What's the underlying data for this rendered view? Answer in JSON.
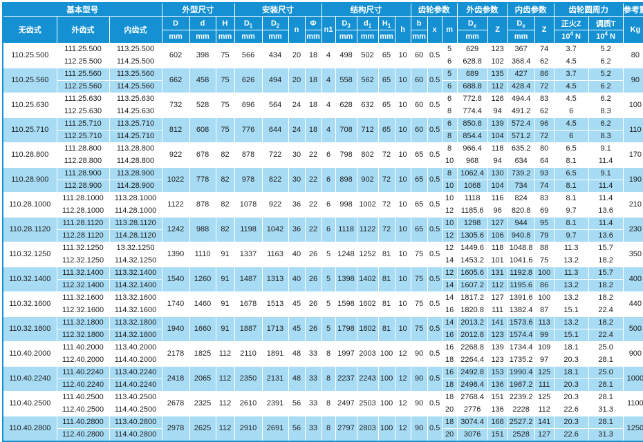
{
  "colors": {
    "header_bg": "#1591d3",
    "stripe_bg": "#a8dcf5",
    "row_bg": "#ffffff",
    "grid_line": "#ffffff",
    "text": "#1c1c1c",
    "header_text": "#ffffff"
  },
  "table": {
    "header": {
      "groups": [
        {
          "label": "基本型号",
          "span": 3
        },
        {
          "label": "外型尺寸",
          "span": 3
        },
        {
          "label": "安装尺寸",
          "span": 4
        },
        {
          "label": "结构尺寸",
          "span": 5
        },
        {
          "label": "齿轮参数",
          "span": 3
        },
        {
          "label": "外齿参数",
          "span": 2
        },
        {
          "label": "内齿参数",
          "span": 2
        },
        {
          "label": "齿轮圆周力",
          "span": 2
        },
        {
          "label": "参考重量",
          "span": 1
        }
      ],
      "cols": [
        {
          "key": "model-base",
          "base": "无齿式",
          "tall": true
        },
        {
          "key": "model-external",
          "base": "外齿式",
          "tall": true
        },
        {
          "key": "model-internal",
          "base": "内齿式",
          "tall": true
        },
        {
          "key": "D",
          "base": "D",
          "unit": "mm"
        },
        {
          "key": "d",
          "base": "d",
          "unit": "mm"
        },
        {
          "key": "H",
          "base": "H",
          "unit": "mm"
        },
        {
          "key": "D1",
          "base": "D",
          "sub": "1",
          "unit": "mm"
        },
        {
          "key": "D2",
          "base": "D",
          "sub": "2",
          "unit": "mm"
        },
        {
          "key": "n",
          "base": "n",
          "tall": true
        },
        {
          "key": "phi",
          "base": "Φ",
          "unit": "mm"
        },
        {
          "key": "n1",
          "base": "n1",
          "tall": true
        },
        {
          "key": "D3",
          "base": "D",
          "sub": "3",
          "unit": "mm"
        },
        {
          "key": "d1",
          "base": "d",
          "sub": "1",
          "unit": "mm"
        },
        {
          "key": "H1",
          "base": "H",
          "sub": "1",
          "unit": "mm"
        },
        {
          "key": "h",
          "base": "h",
          "tall": true
        },
        {
          "key": "b",
          "base": "b",
          "unit": "mm"
        },
        {
          "key": "x",
          "base": "x",
          "tall": true
        },
        {
          "key": "m",
          "base": "m",
          "tall": true
        },
        {
          "key": "De-ext",
          "base": "D",
          "sub": "e",
          "unit": "mm"
        },
        {
          "key": "Z-ext",
          "base": "Z",
          "tall": true
        },
        {
          "key": "De-int",
          "base": "D",
          "sub": "e",
          "unit": "mm"
        },
        {
          "key": "Z-int",
          "base": "Z",
          "tall": true
        },
        {
          "key": "force-normalized",
          "base": "正火Z",
          "unit_base": "10",
          "unit_sup": "4",
          "unit_tail": "N"
        },
        {
          "key": "force-tempered",
          "base": "调质T",
          "unit_base": "10",
          "unit_sup": "4",
          "unit_tail": "N"
        },
        {
          "key": "kg",
          "base": "Kg",
          "tall": true
        }
      ],
      "dim_keys": [
        "D",
        "d",
        "H",
        "D1",
        "D2",
        "n",
        "phi",
        "n1",
        "D3",
        "d1",
        "H1",
        "h",
        "b",
        "x"
      ],
      "sub_keys": [
        "m",
        "De-ext",
        "Z-ext",
        "De-int",
        "Z-int",
        "force-normalized",
        "force-tempered"
      ]
    },
    "rows": [
      {
        "model": "110.25.500",
        "ext": [
          "111.25.500",
          "112.25.500"
        ],
        "int": [
          "113.25.500",
          "114.25.500"
        ],
        "dims": [
          "602",
          "398",
          "75",
          "566",
          "434",
          "20",
          "18",
          "4",
          "498",
          "502",
          "65",
          "10",
          "60",
          "0.5"
        ],
        "sub1": [
          "5",
          "629",
          "123",
          "367",
          "74",
          "3.7",
          "5.2"
        ],
        "sub2": [
          "6",
          "628.8",
          "102",
          "368.4",
          "62",
          "4.5",
          "6.2"
        ],
        "kg": "80"
      },
      {
        "model": "110.25.560",
        "ext": [
          "111.25.560",
          "112.25.560"
        ],
        "int": [
          "113.25.560",
          "114.25.560"
        ],
        "dims": [
          "662",
          "458",
          "75",
          "626",
          "494",
          "20",
          "18",
          "4",
          "558",
          "562",
          "65",
          "10",
          "60",
          "0.5"
        ],
        "sub1": [
          "5",
          "689",
          "135",
          "427",
          "86",
          "3.7",
          "5.2"
        ],
        "sub2": [
          "6",
          "688.8",
          "112",
          "428.4",
          "72",
          "4.5",
          "6.2"
        ],
        "kg": "90"
      },
      {
        "model": "110.25.630",
        "ext": [
          "111.25.630",
          "112.25.630"
        ],
        "int": [
          "113.25.630",
          "114.25.630"
        ],
        "dims": [
          "732",
          "528",
          "75",
          "696",
          "564",
          "24",
          "18",
          "4",
          "628",
          "632",
          "65",
          "10",
          "60",
          "0.5"
        ],
        "sub1": [
          "6",
          "772.8",
          "126",
          "494.4",
          "83",
          "4.5",
          "6.2"
        ],
        "sub2": [
          "8",
          "774.4",
          "94",
          "491.2",
          "62",
          "6",
          "8.3"
        ],
        "kg": "100"
      },
      {
        "model": "110.25.710",
        "ext": [
          "111.25.710",
          "112.25.710"
        ],
        "int": [
          "113.25.710",
          "114.25.710"
        ],
        "dims": [
          "812",
          "608",
          "75",
          "776",
          "644",
          "24",
          "18",
          "4",
          "708",
          "712",
          "65",
          "10",
          "60",
          "0.5"
        ],
        "sub1": [
          "6",
          "850.8",
          "139",
          "572.4",
          "96",
          "4.5",
          "6.2"
        ],
        "sub2": [
          "8",
          "854.4",
          "104",
          "571.2",
          "72",
          "6",
          "8.3"
        ],
        "kg": "110"
      },
      {
        "model": "110.28.800",
        "ext": [
          "111.28.800",
          "112.28.800"
        ],
        "int": [
          "113.28.800",
          "114.28.800"
        ],
        "dims": [
          "922",
          "678",
          "82",
          "878",
          "722",
          "30",
          "22",
          "6",
          "798",
          "802",
          "72",
          "10",
          "65",
          "0.5"
        ],
        "sub1": [
          "8",
          "966.4",
          "118",
          "635.2",
          "80",
          "6.5",
          "9.1"
        ],
        "sub2": [
          "10",
          "968",
          "94",
          "634",
          "64",
          "8.1",
          "11.4"
        ],
        "kg": "170"
      },
      {
        "model": "110.28.900",
        "ext": [
          "111.28.900",
          "112.28.900"
        ],
        "int": [
          "113.28.900",
          "114.28.900"
        ],
        "dims": [
          "1022",
          "778",
          "82",
          "978",
          "822",
          "30",
          "22",
          "6",
          "898",
          "902",
          "72",
          "10",
          "65",
          "0.5"
        ],
        "sub1": [
          "8",
          "1062.4",
          "130",
          "739.2",
          "93",
          "6.5",
          "9.1"
        ],
        "sub2": [
          "10",
          "1068",
          "104",
          "734",
          "74",
          "8.1",
          "11.4"
        ],
        "kg": "190"
      },
      {
        "model": "110.28.1000",
        "ext": [
          "111.28.1000",
          "112.28.1000"
        ],
        "int": [
          "113.28.1000",
          "114.28.1000"
        ],
        "dims": [
          "1122",
          "878",
          "82",
          "1078",
          "922",
          "36",
          "22",
          "6",
          "998",
          "1002",
          "72",
          "10",
          "65",
          "0.5"
        ],
        "sub1": [
          "10",
          "1118",
          "116",
          "824",
          "83",
          "8.1",
          "11.4"
        ],
        "sub2": [
          "12",
          "1185.6",
          "96",
          "820.8",
          "69",
          "9.7",
          "13.6"
        ],
        "kg": "210"
      },
      {
        "model": "110.28.1120",
        "ext": [
          "111.28.1120",
          "112.28.1120"
        ],
        "int": [
          "113.28.1120",
          "114.28.1120"
        ],
        "dims": [
          "1242",
          "988",
          "82",
          "1198",
          "1042",
          "36",
          "22",
          "6",
          "1118",
          "1122",
          "72",
          "10",
          "65",
          "0.5"
        ],
        "sub1": [
          "10",
          "1298",
          "127",
          "944",
          "95",
          "8.1",
          "11.4"
        ],
        "sub2": [
          "12",
          "1305.6",
          "106",
          "940.8",
          "79",
          "9.7",
          "13.6"
        ],
        "kg": "230"
      },
      {
        "model": "110.32.1250",
        "ext": [
          "111.32.1250",
          "112.32.1250"
        ],
        "int": [
          "13.32.1250",
          "114.32.1250"
        ],
        "dims": [
          "1390",
          "1110",
          "91",
          "1337",
          "1163",
          "40",
          "26",
          "5",
          "1248",
          "1252",
          "81",
          "10",
          "75",
          "0.5"
        ],
        "sub1": [
          "12",
          "1449.6",
          "118",
          "1048.8",
          "88",
          "11.3",
          "15.7"
        ],
        "sub2": [
          "14",
          "1453.2",
          "101",
          "1041.6",
          "75",
          "13.2",
          "18.2"
        ],
        "kg": "350"
      },
      {
        "model": "110.32.1400",
        "ext": [
          "111.32.1400",
          "112.32.1400"
        ],
        "int": [
          "113.32.1400",
          "114.32.1400"
        ],
        "dims": [
          "1540",
          "1260",
          "91",
          "1487",
          "1313",
          "40",
          "26",
          "5",
          "1398",
          "1402",
          "81",
          "10",
          "75",
          "0.5"
        ],
        "sub1": [
          "12",
          "1605.6",
          "131",
          "1192.8",
          "100",
          "11.3",
          "15.7"
        ],
        "sub2": [
          "14",
          "1607.2",
          "112",
          "1195.6",
          "86",
          "13.2",
          "18.2"
        ],
        "kg": "400"
      },
      {
        "model": "110.32.1600",
        "ext": [
          "111.32.1600",
          "112.32.1600"
        ],
        "int": [
          "113.32.1600",
          "114.32.1600"
        ],
        "dims": [
          "1740",
          "1460",
          "91",
          "1678",
          "1513",
          "45",
          "26",
          "5",
          "1598",
          "1602",
          "81",
          "10",
          "75",
          "0.5"
        ],
        "sub1": [
          "14",
          "1817.2",
          "127",
          "1391.6",
          "100",
          "13.2",
          "18.2"
        ],
        "sub2": [
          "16",
          "1820.8",
          "111",
          "1382.4",
          "87",
          "15.1",
          "22.4"
        ],
        "kg": "440"
      },
      {
        "model": "110.32.1800",
        "ext": [
          "111.32.1800",
          "112.32.1800"
        ],
        "int": [
          "113.32.1800",
          "114.32.1800"
        ],
        "dims": [
          "1940",
          "1660",
          "91",
          "1887",
          "1713",
          "45",
          "26",
          "5",
          "1798",
          "1802",
          "81",
          "10",
          "75",
          "0.5"
        ],
        "sub1": [
          "14",
          "2013.2",
          "141",
          "1573.6",
          "113",
          "13.2",
          "18.2"
        ],
        "sub2": [
          "16",
          "2012.8",
          "123",
          "1574.4",
          "99",
          "15.1",
          "22.4"
        ],
        "kg": "500"
      },
      {
        "model": "110.40.2000",
        "ext": [
          "111.40.2000",
          "112.40.2000"
        ],
        "int": [
          "113.40.2000",
          "114.40.2000"
        ],
        "dims": [
          "2178",
          "1825",
          "112",
          "2110",
          "1891",
          "48",
          "33",
          "8",
          "1997",
          "2003",
          "100",
          "12",
          "90",
          "0.5"
        ],
        "sub1": [
          "16",
          "2268.8",
          "139",
          "1734.4",
          "109",
          "18.1",
          "25.0"
        ],
        "sub2": [
          "18",
          "2264.4",
          "123",
          "1735.2",
          "97",
          "20.3",
          "28.1"
        ],
        "kg": "900"
      },
      {
        "model": "110.40.2240",
        "ext": [
          "111.40.2240",
          "112.40.2240"
        ],
        "int": [
          "113.40.2240",
          "114.40.2240"
        ],
        "dims": [
          "2418",
          "2065",
          "112",
          "2350",
          "2131",
          "48",
          "33",
          "8",
          "2237",
          "2243",
          "100",
          "12",
          "90",
          "0.5"
        ],
        "sub1": [
          "16",
          "2492.8",
          "153",
          "1990.4",
          "125",
          "18.1",
          "25.0"
        ],
        "sub2": [
          "18",
          "2498.4",
          "136",
          "1987.2",
          "111",
          "20.3",
          "28.1"
        ],
        "kg": "1000"
      },
      {
        "model": "110.40.2500",
        "ext": [
          "111.40.2500",
          "112.40.2500"
        ],
        "int": [
          "113.40.2500",
          "114.40.2500"
        ],
        "dims": [
          "2678",
          "2325",
          "112",
          "2610",
          "2391",
          "56",
          "33",
          "8",
          "2497",
          "2503",
          "100",
          "12",
          "90",
          "0.5"
        ],
        "sub1": [
          "18",
          "2768.4",
          "151",
          "2239.2",
          "125",
          "20.3",
          "28.1"
        ],
        "sub2": [
          "20",
          "2776",
          "136",
          "2228",
          "112",
          "22.6",
          "31.3"
        ],
        "kg": "1100"
      },
      {
        "model": "110.40.2800",
        "ext": [
          "111.40.2800",
          "112.40.2800"
        ],
        "int": [
          "113.40.2800",
          "114.40.2800"
        ],
        "dims": [
          "2978",
          "2625",
          "112",
          "2910",
          "2691",
          "56",
          "33",
          "8",
          "2797",
          "2803",
          "100",
          "12",
          "90",
          "0.5"
        ],
        "sub1": [
          "18",
          "3074.4",
          "168",
          "2527.2",
          "141",
          "20.3",
          "28.1"
        ],
        "sub2": [
          "20",
          "3076",
          "151",
          "2528",
          "127",
          "22.6",
          "31.3"
        ],
        "kg": "1250"
      }
    ]
  }
}
